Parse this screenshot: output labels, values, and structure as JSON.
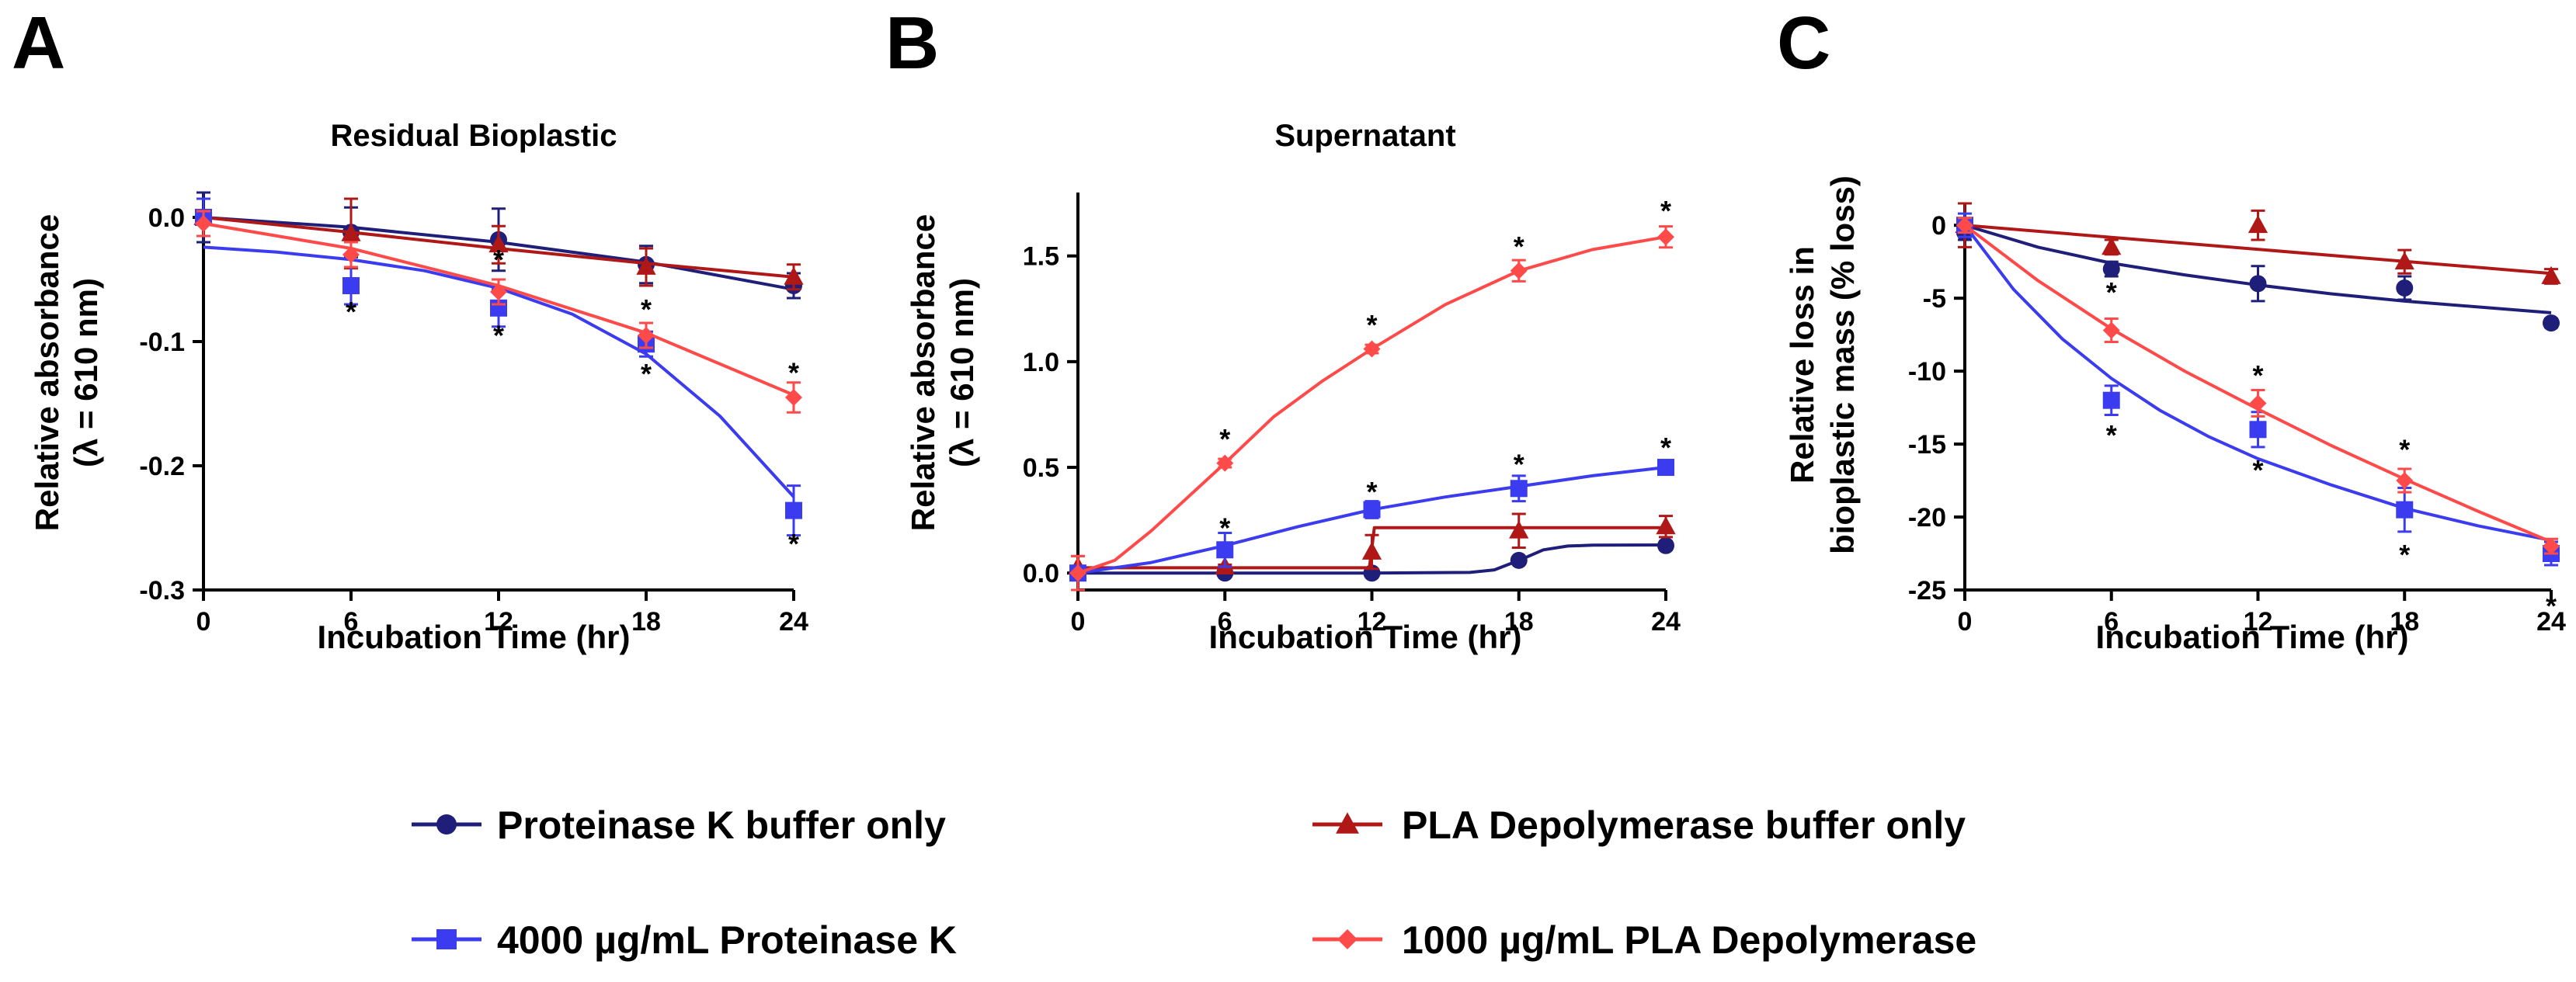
{
  "legend": [
    {
      "id": "pk_buffer",
      "label": "Proteinase K buffer only",
      "color": "#1f1f7a",
      "marker": "circle"
    },
    {
      "id": "pla_buffer",
      "label": "PLA Depolymerase buffer only",
      "color": "#b01818",
      "marker": "triangle"
    },
    {
      "id": "pk_4000",
      "label": "4000 µg/mL Proteinase K",
      "color": "#3b3bf0",
      "marker": "square"
    },
    {
      "id": "pla_1000",
      "label": "1000 µg/mL PLA Depolymerase",
      "color": "#ff4a4a",
      "marker": "diamond"
    }
  ],
  "chart_data": [
    {
      "panel": "A",
      "type": "scatter",
      "title": "Residual Bioplastic",
      "xlabel": "Incubation Time (hr)",
      "ylabel_lines": [
        "Relative absorbance",
        "(λ = 610 nm)"
      ],
      "xlim": [
        0,
        24
      ],
      "ylim": [
        -0.3,
        0.02
      ],
      "xticks": [
        0,
        6,
        12,
        18,
        24
      ],
      "yticks": [
        0.0,
        -0.1,
        -0.2,
        -0.3
      ],
      "ytick_labels": [
        "0.0",
        "-0.1",
        "-0.2",
        "-0.3"
      ],
      "series": [
        {
          "id": "pk_buffer",
          "x": [
            0,
            6,
            12,
            18,
            24
          ],
          "y": [
            0.0,
            -0.012,
            -0.018,
            -0.038,
            -0.055
          ],
          "err": [
            0.02,
            0.02,
            0.025,
            0.015,
            0.01
          ],
          "fit_x": [
            0,
            6,
            12,
            18,
            24
          ],
          "fit_y": [
            0.0,
            -0.008,
            -0.02,
            -0.036,
            -0.058
          ]
        },
        {
          "id": "pla_buffer",
          "x": [
            0,
            6,
            12,
            18,
            24
          ],
          "y": [
            0.0,
            -0.013,
            -0.022,
            -0.04,
            -0.048
          ],
          "err": [
            0.015,
            0.028,
            0.015,
            0.015,
            0.01
          ],
          "fit_x": [
            0,
            6,
            12,
            18,
            24
          ],
          "fit_y": [
            0.0,
            -0.012,
            -0.025,
            -0.037,
            -0.048
          ]
        },
        {
          "id": "pk_4000",
          "x": [
            0,
            6,
            12,
            18,
            24
          ],
          "y": [
            0.0,
            -0.055,
            -0.073,
            -0.102,
            -0.236
          ],
          "err": [
            0.015,
            0.015,
            0.015,
            0.01,
            0.02
          ],
          "fit_x": [
            0,
            3,
            6,
            9,
            12,
            15,
            18,
            21,
            24
          ],
          "fit_y": [
            -0.024,
            -0.028,
            -0.034,
            -0.043,
            -0.057,
            -0.078,
            -0.11,
            -0.16,
            -0.225
          ]
        },
        {
          "id": "pla_1000",
          "x": [
            0,
            6,
            12,
            18,
            24
          ],
          "y": [
            -0.005,
            -0.03,
            -0.06,
            -0.095,
            -0.145
          ],
          "err": [
            0.01,
            0.01,
            0.01,
            0.01,
            0.012
          ],
          "fit_x": [
            0,
            6,
            12,
            18,
            24
          ],
          "fit_y": [
            -0.005,
            -0.025,
            -0.055,
            -0.093,
            -0.143
          ]
        }
      ],
      "significance": [
        {
          "x": 6,
          "y": -0.075,
          "text": "*"
        },
        {
          "x": 12,
          "y": -0.033,
          "text": "*"
        },
        {
          "x": 12,
          "y": -0.094,
          "text": "*"
        },
        {
          "x": 18,
          "y": -0.073,
          "text": "*"
        },
        {
          "x": 18,
          "y": -0.125,
          "text": "*"
        },
        {
          "x": 24,
          "y": -0.124,
          "text": "*"
        },
        {
          "x": 24,
          "y": -0.262,
          "text": "*"
        }
      ]
    },
    {
      "panel": "B",
      "type": "scatter",
      "title": "Supernatant",
      "xlabel": "Incubation Time (hr)",
      "ylabel_lines": [
        "Relative absorbance",
        "(λ = 610 nm)"
      ],
      "xlim": [
        0,
        24
      ],
      "ylim": [
        -0.08,
        1.8
      ],
      "xticks": [
        0,
        6,
        12,
        18,
        24
      ],
      "yticks": [
        0.0,
        0.5,
        1.0,
        1.5
      ],
      "ytick_labels": [
        "0.0",
        "0.5",
        "1.0",
        "1.5"
      ],
      "series": [
        {
          "id": "pk_buffer",
          "x": [
            0,
            6,
            12,
            18,
            24
          ],
          "y": [
            0.0,
            0.0,
            0.0,
            0.06,
            0.13
          ],
          "err": [
            0.0,
            0.0,
            0.0,
            0.0,
            0.02
          ],
          "fit_x": [
            0,
            12,
            16,
            17,
            18,
            19,
            20,
            21,
            24
          ],
          "fit_y": [
            0.0,
            0.0,
            0.003,
            0.015,
            0.06,
            0.11,
            0.128,
            0.132,
            0.133
          ]
        },
        {
          "id": "pla_buffer",
          "x": [
            0,
            6,
            12,
            18,
            24
          ],
          "y": [
            0.03,
            0.03,
            0.1,
            0.2,
            0.22
          ],
          "err": [
            0.05,
            0.01,
            0.08,
            0.08,
            0.05
          ],
          "fit_x": [
            0,
            11.9,
            12.1,
            24
          ],
          "fit_y": [
            0.025,
            0.025,
            0.215,
            0.215
          ]
        },
        {
          "id": "pk_4000",
          "x": [
            0,
            6,
            12,
            18,
            24
          ],
          "y": [
            0.0,
            0.11,
            0.3,
            0.4,
            0.5
          ],
          "err": [
            0.02,
            0.08,
            0.04,
            0.06,
            0.03
          ],
          "fit_x": [
            0,
            3,
            6,
            9,
            12,
            15,
            18,
            21,
            24
          ],
          "fit_y": [
            0.0,
            0.05,
            0.13,
            0.22,
            0.3,
            0.36,
            0.41,
            0.46,
            0.5
          ]
        },
        {
          "id": "pla_1000",
          "x": [
            0,
            6,
            12,
            18,
            24
          ],
          "y": [
            0.0,
            0.52,
            1.06,
            1.43,
            1.59
          ],
          "err": [
            0.08,
            0.02,
            0.02,
            0.05,
            0.05
          ],
          "fit_x": [
            0,
            1.5,
            3,
            4.5,
            6,
            8,
            10,
            12,
            15,
            18,
            21,
            24
          ],
          "fit_y": [
            0.0,
            0.06,
            0.2,
            0.36,
            0.52,
            0.74,
            0.91,
            1.06,
            1.27,
            1.43,
            1.53,
            1.59
          ]
        }
      ],
      "significance": [
        {
          "x": 6,
          "y": 0.64,
          "text": "*"
        },
        {
          "x": 6,
          "y": 0.22,
          "text": "*"
        },
        {
          "x": 12,
          "y": 1.18,
          "text": "*"
        },
        {
          "x": 12,
          "y": 0.39,
          "text": "*"
        },
        {
          "x": 18,
          "y": 1.55,
          "text": "*"
        },
        {
          "x": 18,
          "y": 0.52,
          "text": "*"
        },
        {
          "x": 24,
          "y": 1.72,
          "text": "*"
        },
        {
          "x": 24,
          "y": 0.6,
          "text": "*"
        }
      ]
    },
    {
      "panel": "C",
      "type": "scatter",
      "title": "",
      "xlabel": "Incubation Time (hr)",
      "ylabel_lines": [
        "Relative loss in",
        "bioplastic mass (% loss)"
      ],
      "xlim": [
        0,
        24
      ],
      "ylim": [
        -25,
        1.5
      ],
      "xticks": [
        0,
        6,
        12,
        18,
        24
      ],
      "yticks": [
        0,
        -5,
        -10,
        -15,
        -20,
        -25
      ],
      "ytick_labels": [
        "0",
        "-5",
        "-10",
        "-15",
        "-20",
        "-25"
      ],
      "series": [
        {
          "id": "pk_buffer",
          "x": [
            0,
            6,
            12,
            18,
            24
          ],
          "y": [
            -0.5,
            -3.0,
            -4.0,
            -4.3,
            -6.7
          ],
          "err": [
            0.5,
            0.5,
            1.2,
            0.8,
            0.3
          ],
          "fit_x": [
            0,
            3,
            6,
            9,
            12,
            15,
            18,
            21,
            24
          ],
          "fit_y": [
            0,
            -1.5,
            -2.6,
            -3.4,
            -4.1,
            -4.7,
            -5.2,
            -5.6,
            -6.0
          ]
        },
        {
          "id": "pla_buffer",
          "x": [
            0,
            6,
            12,
            18,
            24
          ],
          "y": [
            0.0,
            -1.5,
            0.0,
            -2.5,
            -3.5
          ],
          "err": [
            1.5,
            0.5,
            1.0,
            0.8,
            0.5
          ],
          "fit_x": [
            0,
            24
          ],
          "fit_y": [
            0,
            -3.3
          ]
        },
        {
          "id": "pk_4000",
          "x": [
            0,
            6,
            12,
            18,
            24
          ],
          "y": [
            0.0,
            -12.0,
            -14.0,
            -19.5,
            -22.5
          ],
          "err": [
            0.8,
            1.0,
            1.2,
            1.5,
            0.8
          ],
          "fit_x": [
            0,
            2,
            4,
            6,
            8,
            10,
            12,
            15,
            18,
            21,
            24
          ],
          "fit_y": [
            0,
            -4.4,
            -7.8,
            -10.5,
            -12.7,
            -14.5,
            -16.0,
            -17.8,
            -19.4,
            -20.6,
            -21.6
          ]
        },
        {
          "id": "pla_1000",
          "x": [
            0,
            6,
            12,
            18,
            24
          ],
          "y": [
            0.0,
            -7.2,
            -12.2,
            -17.5,
            -22.0
          ],
          "err": [
            0.5,
            0.8,
            0.9,
            0.8,
            0.5
          ],
          "fit_x": [
            0,
            3,
            6,
            9,
            12,
            15,
            18,
            21,
            24
          ],
          "fit_y": [
            0,
            -3.8,
            -7.1,
            -10.0,
            -12.6,
            -15.1,
            -17.4,
            -19.6,
            -21.7
          ]
        }
      ],
      "significance": [
        {
          "x": 6,
          "y": -4.5,
          "text": "*"
        },
        {
          "x": 6,
          "y": -14.3,
          "text": "*"
        },
        {
          "x": 12,
          "y": -10.2,
          "text": "*"
        },
        {
          "x": 12,
          "y": -16.7,
          "text": "*"
        },
        {
          "x": 18,
          "y": -15.3,
          "text": "*"
        },
        {
          "x": 18,
          "y": -22.5,
          "text": "*"
        },
        {
          "x": 24,
          "y": -26.0,
          "text": "*"
        }
      ]
    }
  ]
}
